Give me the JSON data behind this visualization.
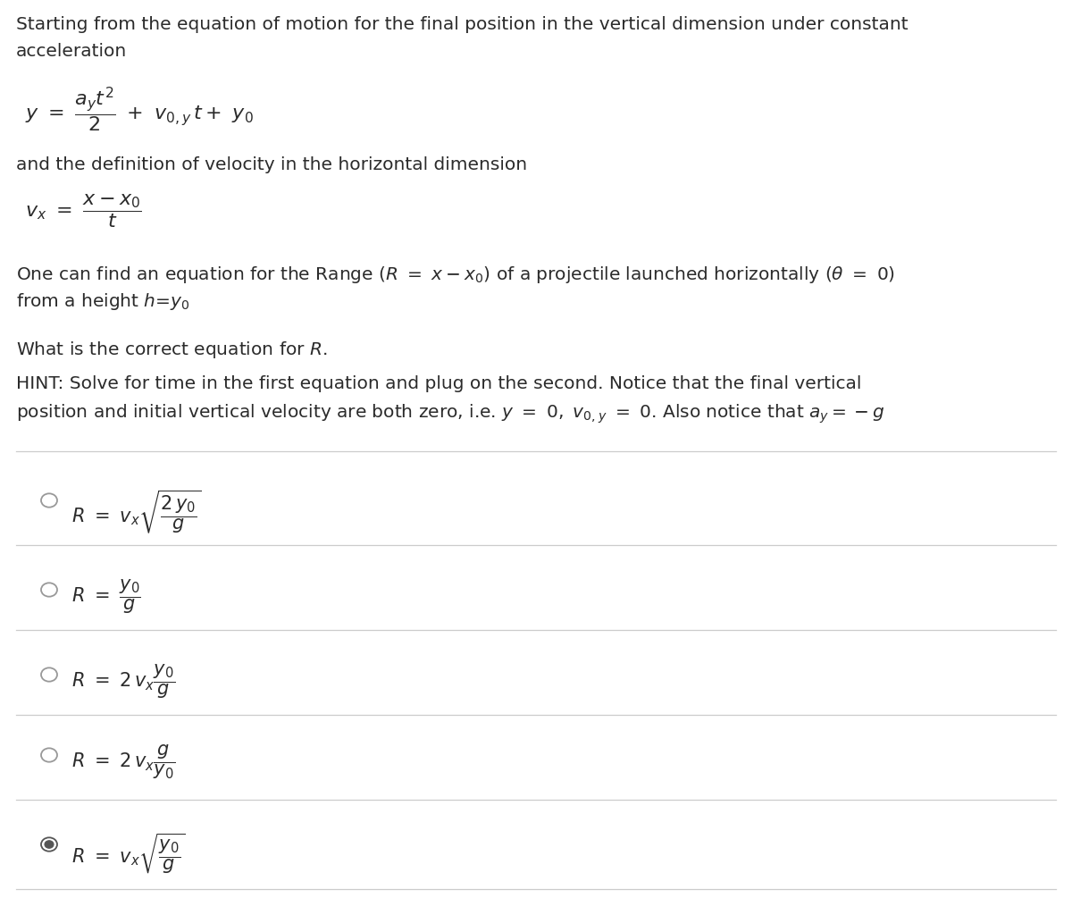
{
  "bg_color": "#ffffff",
  "text_color": "#2b2b2b",
  "separator_color": "#cccccc",
  "font_size_text": 14.5,
  "font_size_eq": 16,
  "font_size_option": 15,
  "radio_unselected": "#999999",
  "radio_selected": "#555555",
  "para1_line1": "Starting from the equation of motion for the final position in the vertical dimension under constant",
  "para1_line2": "acceleration",
  "eq1": "$y \\ = \\ \\dfrac{a_y t^2}{2} \\ + \\ v_{0,y}\\, t + \\ y_0$",
  "para2": "and the definition of velocity in the horizontal dimension",
  "eq2": "$v_x \\ = \\ \\dfrac{x-x_0}{t}$",
  "para3_line1": "One can find an equation for the Range ($R \\ = \\ x - x_0$) of a projectile launched horizontally ($\\theta \\ = \\ 0$)",
  "para3_line2": "from a height $h$=$y_0$",
  "para4": "What is the correct equation for $R$.",
  "para5_line1": "HINT: Solve for time in the first equation and plug on the second. Notice that the final vertical",
  "para5_line2": "position and initial vertical velocity are both zero, i.e. $y \\ = \\ 0,\\ v_{0,y} \\ = \\ 0$. Also notice that $a_y = -g$",
  "options": [
    {
      "label": "$R \\ = \\ v_x\\sqrt{\\dfrac{2\\,y_0}{g}}$",
      "selected": false
    },
    {
      "label": "$R \\ = \\ \\dfrac{y_0}{g}$",
      "selected": false
    },
    {
      "label": "$R \\ = \\ 2\\,v_x\\dfrac{y_0}{g}$",
      "selected": false
    },
    {
      "label": "$R \\ = \\ 2\\,v_x\\dfrac{g}{y_0}$",
      "selected": false
    },
    {
      "label": "$R \\ = \\ v_x\\sqrt{\\dfrac{y_0}{g}}$",
      "selected": true
    }
  ]
}
